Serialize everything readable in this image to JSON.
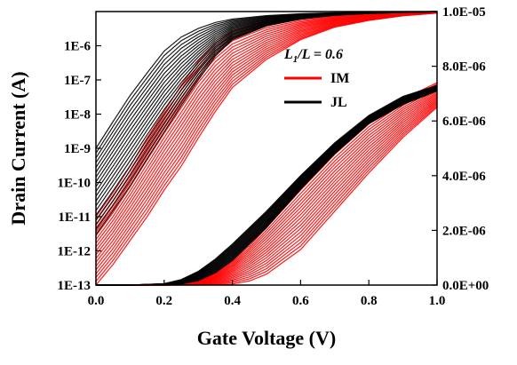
{
  "chart_data": {
    "type": "line",
    "xlabel": "Gate Voltage (V)",
    "ylabel_left": "Drain Current (A)",
    "xlim": [
      0.0,
      1.0
    ],
    "ylim_left_log": [
      1e-13,
      1e-05
    ],
    "ylim_right_linear": [
      0.0,
      1e-05
    ],
    "left_scale": "log",
    "right_scale": "linear",
    "x_ticks": [
      "0.0",
      "0.2",
      "0.4",
      "0.6",
      "0.8",
      "1.0"
    ],
    "y_left_ticks": [
      "1E-13",
      "1E-12",
      "1E-11",
      "1E-10",
      "1E-9",
      "1E-8",
      "1E-7",
      "1E-6"
    ],
    "y_right_ticks": [
      "0.0E+00",
      "2.0E-06",
      "4.0E-06",
      "6.0E-06",
      "8.0E-06",
      "1.0E-05"
    ],
    "legend": {
      "title_main": "L",
      "title_sub": "1",
      "title_rest": "/L = 0.6",
      "placement": "top-right"
    },
    "series": [
      {
        "name": "IM",
        "color": "#ff0000",
        "axis": "left-log",
        "x": [
          0.0,
          0.05,
          0.1,
          0.15,
          0.2,
          0.25,
          0.3,
          0.35,
          0.4,
          0.5,
          0.6,
          0.7,
          0.8,
          0.9,
          1.0
        ],
        "low": [
          1e-13,
          4e-13,
          2e-12,
          1e-11,
          6e-11,
          3e-10,
          2e-09,
          1.2e-08,
          6e-08,
          4e-07,
          1.5e-06,
          3.5e-06,
          5.5e-06,
          7.5e-06,
          9e-06
        ],
        "high": [
          1e-11,
          5e-11,
          3e-10,
          2e-09,
          1.2e-08,
          7e-08,
          3.5e-07,
          1.2e-06,
          2.6e-06,
          5.2e-06,
          7e-06,
          8.2e-06,
          9e-06,
          9.5e-06,
          9.8e-06
        ]
      },
      {
        "name": "JL",
        "color": "#000000",
        "axis": "left-log",
        "x": [
          0.0,
          0.05,
          0.1,
          0.15,
          0.2,
          0.25,
          0.3,
          0.35,
          0.4,
          0.5,
          0.6,
          0.7,
          0.8,
          0.9,
          1.0
        ],
        "low": [
          3e-12,
          1.5e-11,
          8e-11,
          5e-10,
          3e-09,
          1.8e-08,
          1e-07,
          5e-07,
          1.5e-06,
          3.8e-06,
          6e-06,
          7.8e-06,
          8.8e-06,
          9.4e-06,
          9.8e-06
        ],
        "high": [
          1e-09,
          6e-09,
          3.5e-08,
          1.6e-07,
          7e-07,
          1.8e-06,
          3.2e-06,
          4.8e-06,
          6e-06,
          7.6e-06,
          8.6e-06,
          9.2e-06,
          9.6e-06,
          9.8e-06,
          1e-05
        ]
      },
      {
        "name": "IM",
        "color": "#ff0000",
        "axis": "right-linear",
        "x": [
          0.0,
          0.1,
          0.2,
          0.25,
          0.3,
          0.35,
          0.4,
          0.45,
          0.5,
          0.6,
          0.7,
          0.8,
          0.9,
          1.0
        ],
        "low": [
          0.0,
          0.0,
          0.0,
          0.0,
          0.0,
          1e-08,
          4e-08,
          1.5e-07,
          4e-07,
          1.3e-06,
          2.7e-06,
          4.1e-06,
          5.4e-06,
          6.5e-06
        ],
        "high": [
          0.0,
          0.0,
          3e-09,
          3e-08,
          1.5e-07,
          4.5e-07,
          9e-07,
          1.5e-06,
          2.2e-06,
          3.6e-06,
          4.9e-06,
          6e-06,
          6.8e-06,
          7.4e-06
        ]
      },
      {
        "name": "JL",
        "color": "#000000",
        "axis": "right-linear",
        "x": [
          0.0,
          0.1,
          0.2,
          0.25,
          0.3,
          0.35,
          0.4,
          0.45,
          0.5,
          0.6,
          0.7,
          0.8,
          0.9,
          1.0
        ],
        "low": [
          0.0,
          0.0,
          5e-09,
          4e-08,
          1.6e-07,
          4.5e-07,
          9e-07,
          1.5e-06,
          2.1e-06,
          3.5e-06,
          4.8e-06,
          5.9e-06,
          6.6e-06,
          7.1e-06
        ],
        "high": [
          0.0,
          0.0,
          5e-08,
          2e-07,
          5e-07,
          9.5e-07,
          1.5e-06,
          2.1e-06,
          2.7e-06,
          4e-06,
          5.2e-06,
          6.2e-06,
          6.9e-06,
          7.3e-06
        ]
      }
    ]
  }
}
